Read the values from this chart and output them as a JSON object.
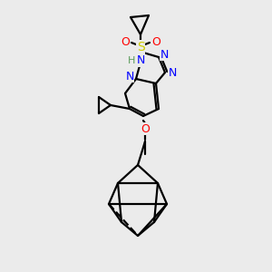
{
  "background_color": "#ebebeb",
  "atom_colors": {
    "N": "#0000ff",
    "O": "#ff0000",
    "S": "#cccc00",
    "H_N": "#5a9a5a"
  },
  "bond_lw": 1.6,
  "font_size": 9
}
